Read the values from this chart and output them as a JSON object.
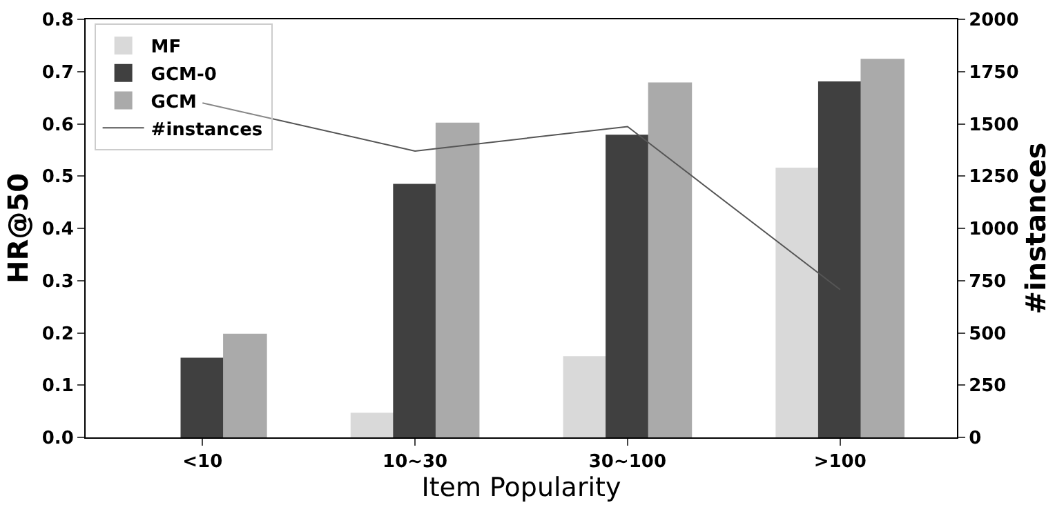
{
  "chart_data": {
    "type": "bar",
    "xlabel": "Item Popularity",
    "ylabel": "HR@50",
    "y2label": "#instances",
    "categories": [
      "<10",
      "10~30",
      "30~100",
      ">100"
    ],
    "series": [
      {
        "name": "MF",
        "color": "#d9d9d9",
        "values": [
          null,
          0.046,
          0.154,
          0.515
        ]
      },
      {
        "name": "GCM-0",
        "color": "#404040",
        "values": [
          0.151,
          0.484,
          0.578,
          0.68
        ]
      },
      {
        "name": "GCM",
        "color": "#aaaaaa",
        "values": [
          0.197,
          0.601,
          0.678,
          0.723
        ]
      },
      {
        "name": "#instances",
        "type": "line",
        "axis": "y2",
        "color": "#555555",
        "values": [
          1600,
          1370,
          1487,
          707
        ]
      }
    ],
    "ylim": [
      0,
      0.8
    ],
    "yticks": [
      {
        "value": 0,
        "label": "0.0"
      },
      0.1,
      0.2,
      0.3,
      0.4,
      0.5,
      0.6,
      0.7,
      {
        "value": 0.8,
        "label": "0.8"
      }
    ],
    "y2lim": [
      0,
      2000
    ],
    "y2ticks": [
      0,
      250,
      500,
      750,
      1000,
      1250,
      1500,
      1750,
      2000
    ],
    "legend": "top left"
  }
}
